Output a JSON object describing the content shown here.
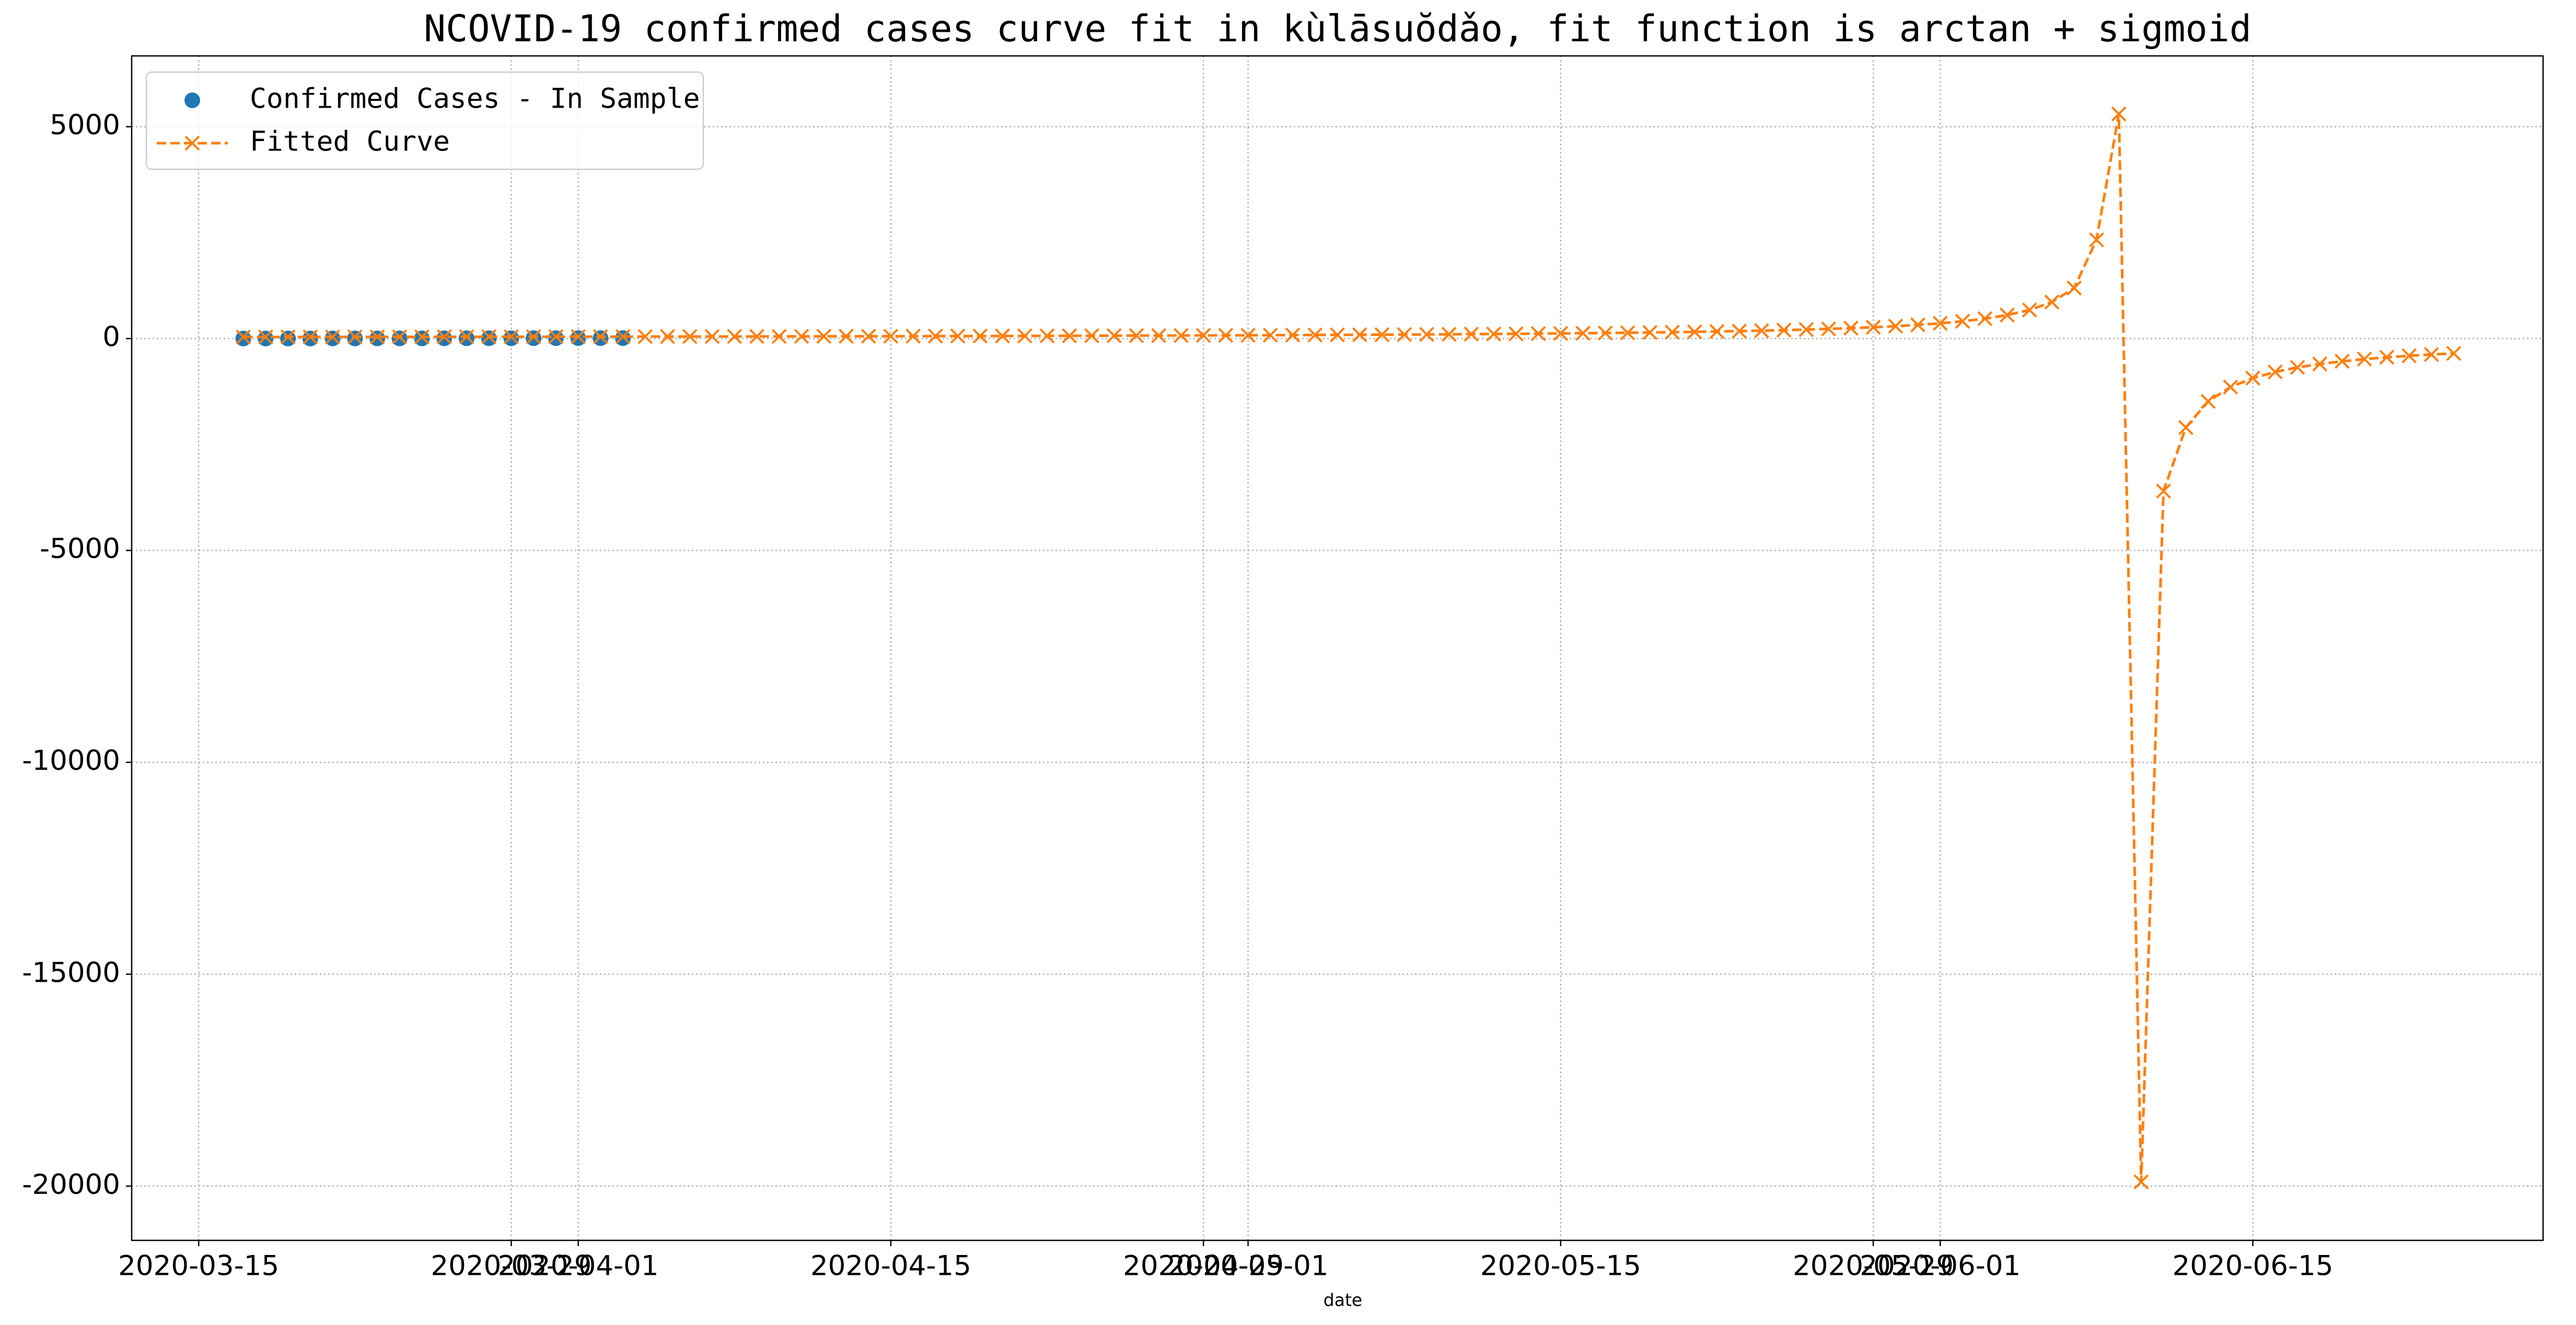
{
  "chart_data": {
    "type": "line",
    "title": "NCOVID-19 confirmed cases curve fit in kùlāsuŏdǎo, fit function is arctan + sigmoid",
    "x_label": "date",
    "xlim": [
      "2020-03-12",
      "2020-06-28"
    ],
    "xticks": [
      "2020-03-15",
      "2020-03-29",
      "2020-04-01",
      "2020-04-15",
      "2020-04-29",
      "2020-05-01",
      "2020-05-15",
      "2020-05-29",
      "2020-06-01",
      "2020-06-15"
    ],
    "ylim": [
      -21280,
      6670
    ],
    "yticks": [
      -20000,
      -15000,
      -10000,
      -5000,
      0,
      5000
    ],
    "grid": true,
    "legend": "upper left",
    "series": [
      {
        "name": "Confirmed Cases - In Sample",
        "color": "#1f77b4",
        "marker": "o",
        "linestyle": "none",
        "x": [
          "2020-03-17",
          "2020-03-18",
          "2020-03-19",
          "2020-03-20",
          "2020-03-21",
          "2020-03-22",
          "2020-03-23",
          "2020-03-24",
          "2020-03-25",
          "2020-03-26",
          "2020-03-27",
          "2020-03-28",
          "2020-03-29",
          "2020-03-30",
          "2020-03-31",
          "2020-04-01",
          "2020-04-02",
          "2020-04-03"
        ],
        "values": [
          1,
          1,
          2,
          2,
          3,
          3,
          4,
          5,
          5,
          6,
          7,
          7,
          8,
          9,
          9,
          10,
          10,
          11
        ]
      },
      {
        "name": "Fitted Curve",
        "color": "#ff7f0e",
        "marker": "x",
        "linestyle": "dashed",
        "x": [
          "2020-03-17",
          "2020-03-18",
          "2020-03-19",
          "2020-03-20",
          "2020-03-21",
          "2020-03-22",
          "2020-03-23",
          "2020-03-24",
          "2020-03-25",
          "2020-03-26",
          "2020-03-27",
          "2020-03-28",
          "2020-03-29",
          "2020-03-30",
          "2020-03-31",
          "2020-04-01",
          "2020-04-02",
          "2020-04-03",
          "2020-04-04",
          "2020-04-05",
          "2020-04-06",
          "2020-04-07",
          "2020-04-08",
          "2020-04-09",
          "2020-04-10",
          "2020-04-11",
          "2020-04-12",
          "2020-04-13",
          "2020-04-14",
          "2020-04-15",
          "2020-04-16",
          "2020-04-17",
          "2020-04-18",
          "2020-04-19",
          "2020-04-20",
          "2020-04-21",
          "2020-04-22",
          "2020-04-23",
          "2020-04-24",
          "2020-04-25",
          "2020-04-26",
          "2020-04-27",
          "2020-04-28",
          "2020-04-29",
          "2020-04-30",
          "2020-05-01",
          "2020-05-02",
          "2020-05-03",
          "2020-05-04",
          "2020-05-05",
          "2020-05-06",
          "2020-05-07",
          "2020-05-08",
          "2020-05-09",
          "2020-05-10",
          "2020-05-11",
          "2020-05-12",
          "2020-05-13",
          "2020-05-14",
          "2020-05-15",
          "2020-05-16",
          "2020-05-17",
          "2020-05-18",
          "2020-05-19",
          "2020-05-20",
          "2020-05-21",
          "2020-05-22",
          "2020-05-23",
          "2020-05-24",
          "2020-05-25",
          "2020-05-26",
          "2020-05-27",
          "2020-05-28",
          "2020-05-29",
          "2020-05-30",
          "2020-05-31",
          "2020-06-01",
          "2020-06-02",
          "2020-06-03",
          "2020-06-04",
          "2020-06-05",
          "2020-06-06",
          "2020-06-07",
          "2020-06-08",
          "2020-06-09",
          "2020-06-10",
          "2020-06-11",
          "2020-06-12",
          "2020-06-13",
          "2020-06-14",
          "2020-06-15",
          "2020-06-16",
          "2020-06-17",
          "2020-06-18",
          "2020-06-19",
          "2020-06-20",
          "2020-06-21",
          "2020-06-22",
          "2020-06-23",
          "2020-06-24"
        ],
        "values": [
          37,
          37,
          38,
          38,
          38,
          39,
          39,
          40,
          40,
          41,
          42,
          42,
          43,
          43,
          44,
          45,
          45,
          46,
          47,
          47,
          48,
          49,
          50,
          50,
          51,
          52,
          53,
          54,
          55,
          56,
          57,
          58,
          59,
          60,
          61,
          63,
          64,
          65,
          67,
          68,
          70,
          71,
          73,
          75,
          76,
          78,
          80,
          82,
          85,
          87,
          90,
          92,
          95,
          98,
          101,
          105,
          108,
          112,
          117,
          121,
          126,
          131,
          137,
          144,
          150,
          158,
          167,
          176,
          187,
          199,
          212,
          228,
          246,
          267,
          292,
          323,
          360,
          408,
          470,
          554,
          674,
          861,
          1192,
          2330,
          5300,
          -19900,
          -3600,
          -2100,
          -1482,
          -1145,
          -933,
          -788,
          -681,
          -600,
          -536,
          -485,
          -442,
          -406,
          -376,
          -350
        ]
      }
    ]
  }
}
